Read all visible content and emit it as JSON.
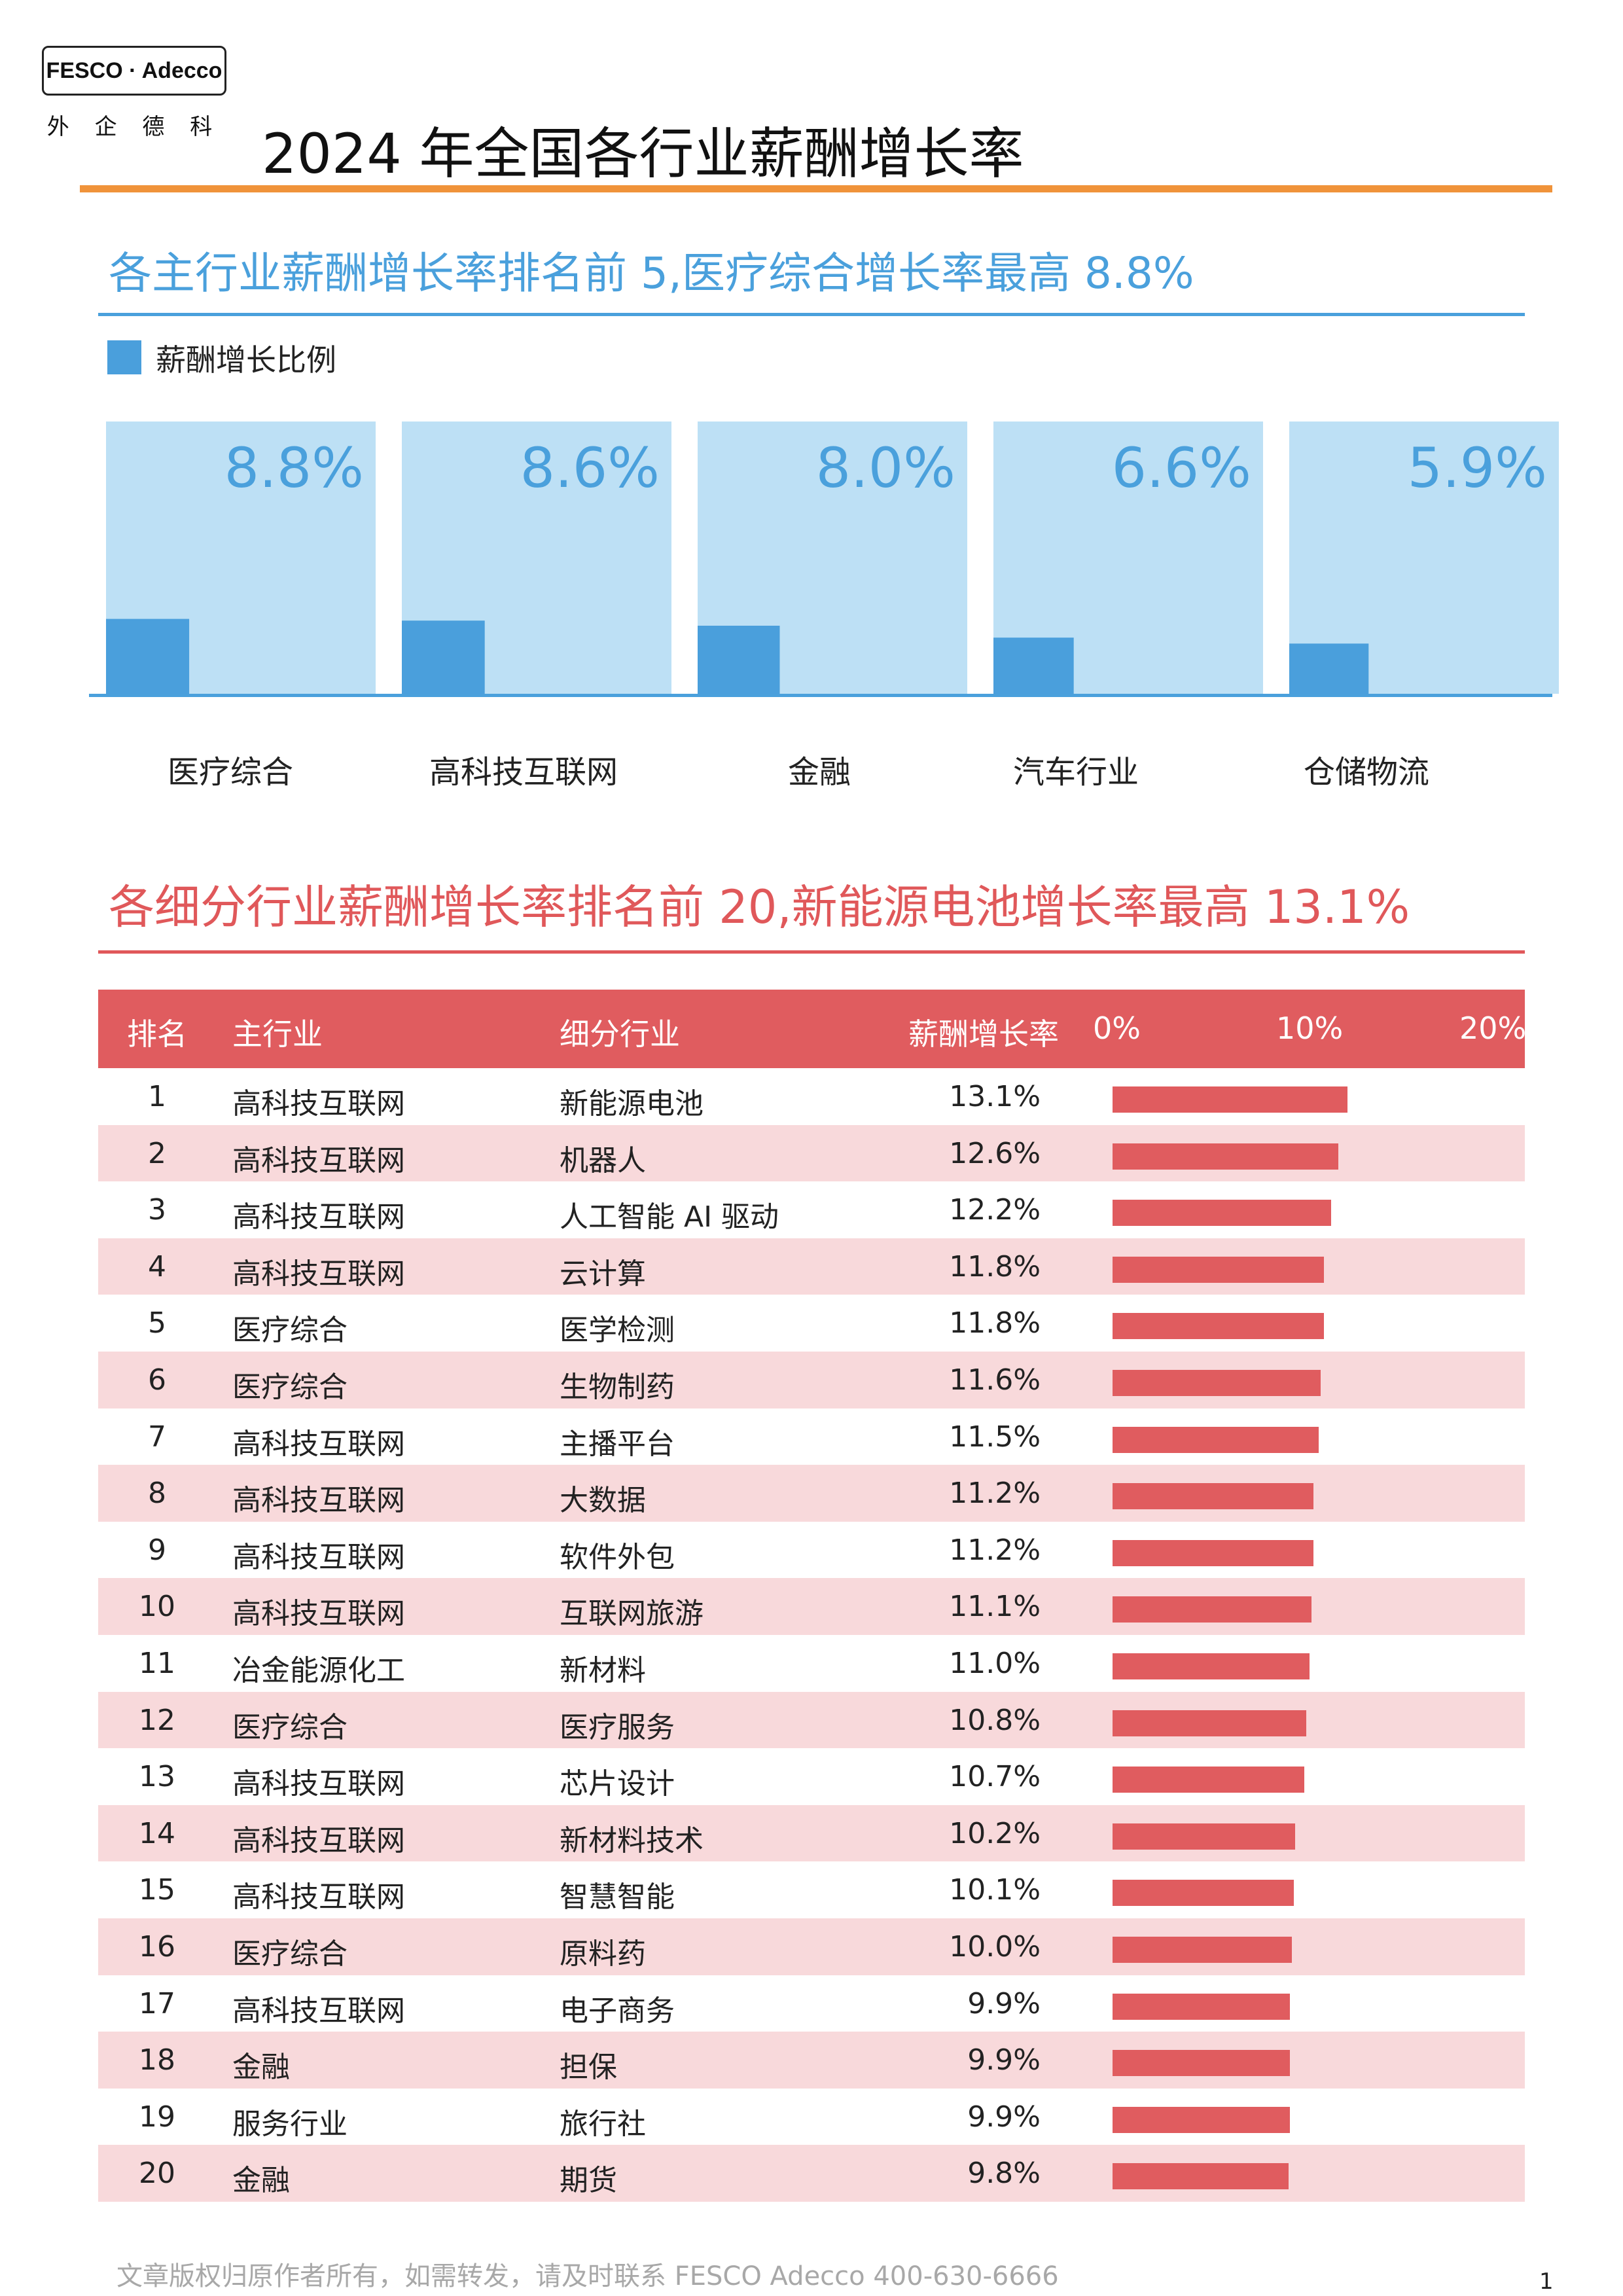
{
  "logo": {
    "brand": "FESCO · Adecco",
    "cn_name": "外 企 德 科"
  },
  "page": {
    "title": "2024  年全国各行业薪酬增长率",
    "footer": "文章版权归原作者所有，如需转发，请及时联系 FESCO Adecco 400-630-6666",
    "page_number": "1"
  },
  "colors": {
    "accent_orange": "#f0933a",
    "blue": "#4aa0dc",
    "light_blue": "#bde0f5",
    "red": "#e05c5f",
    "pink_row": "#f8d9db"
  },
  "section1": {
    "heading": "各主行业薪酬增长率排名前  5,医疗综合增长率最高  8.8%",
    "legend": "薪酬增长比例"
  },
  "section2": {
    "heading": "各细分行业薪酬增长率排名前  20,新能源电池增长率最高  13.1%",
    "columns": {
      "rank": "排名",
      "main": "主行业",
      "sub": "细分行业",
      "rate": "薪酬增长率"
    },
    "axis_ticks": [
      "0%",
      "10%",
      "20%"
    ]
  },
  "chart_data": [
    {
      "type": "bar",
      "title": "各主行业薪酬增长率排名前  5,医疗综合增长率最高  8.8%",
      "series": [
        {
          "name": "薪酬增长比例",
          "values": [
            8.8,
            8.6,
            8.0,
            6.6,
            5.9
          ]
        }
      ],
      "categories": [
        "医疗综合",
        "高科技互联网",
        "金融",
        "汽车行业",
        "仓储物流"
      ],
      "value_labels": [
        "8.8%",
        "8.6%",
        "8.0%",
        "6.6%",
        "5.9%"
      ],
      "unit": "%",
      "legend": "top-left"
    },
    {
      "type": "table",
      "title": "各细分行业薪酬增长率排名前  20,新能源电池增长率最高  13.1%",
      "xlim": [
        0,
        20
      ],
      "rows": [
        {
          "rank": "1",
          "main": "高科技互联网",
          "sub": "新能源电池",
          "rate_label": "13.1%",
          "rate": 13.1
        },
        {
          "rank": "2",
          "main": "高科技互联网",
          "sub": "机器人",
          "rate_label": "12.6%",
          "rate": 12.6
        },
        {
          "rank": "3",
          "main": "高科技互联网",
          "sub": "人工智能  AI  驱动",
          "rate_label": "12.2%",
          "rate": 12.2
        },
        {
          "rank": "4",
          "main": "高科技互联网",
          "sub": "云计算",
          "rate_label": "11.8%",
          "rate": 11.8
        },
        {
          "rank": "5",
          "main": "医疗综合",
          "sub": "医学检测",
          "rate_label": "11.8%",
          "rate": 11.8
        },
        {
          "rank": "6",
          "main": "医疗综合",
          "sub": "生物制药",
          "rate_label": "11.6%",
          "rate": 11.6
        },
        {
          "rank": "7",
          "main": "高科技互联网",
          "sub": "主播平台",
          "rate_label": "11.5%",
          "rate": 11.5
        },
        {
          "rank": "8",
          "main": "高科技互联网",
          "sub": "大数据",
          "rate_label": "11.2%",
          "rate": 11.2
        },
        {
          "rank": "9",
          "main": "高科技互联网",
          "sub": "软件外包",
          "rate_label": "11.2%",
          "rate": 11.2
        },
        {
          "rank": "10",
          "main": "高科技互联网",
          "sub": "互联网旅游",
          "rate_label": "11.1%",
          "rate": 11.1
        },
        {
          "rank": "11",
          "main": "冶金能源化工",
          "sub": "新材料",
          "rate_label": "11.0%",
          "rate": 11.0
        },
        {
          "rank": "12",
          "main": "医疗综合",
          "sub": "医疗服务",
          "rate_label": "10.8%",
          "rate": 10.8
        },
        {
          "rank": "13",
          "main": "高科技互联网",
          "sub": "芯片设计",
          "rate_label": "10.7%",
          "rate": 10.7
        },
        {
          "rank": "14",
          "main": "高科技互联网",
          "sub": "新材料技术",
          "rate_label": "10.2%",
          "rate": 10.2
        },
        {
          "rank": "15",
          "main": "高科技互联网",
          "sub": "智慧智能",
          "rate_label": "10.1%",
          "rate": 10.1
        },
        {
          "rank": "16",
          "main": "医疗综合",
          "sub": "原料药",
          "rate_label": "10.0%",
          "rate": 10.0
        },
        {
          "rank": "17",
          "main": "高科技互联网",
          "sub": "电子商务",
          "rate_label": "9.9%",
          "rate": 9.9
        },
        {
          "rank": "18",
          "main": "金融",
          "sub": "担保",
          "rate_label": "9.9%",
          "rate": 9.9
        },
        {
          "rank": "19",
          "main": "服务行业",
          "sub": "旅行社",
          "rate_label": "9.9%",
          "rate": 9.9
        },
        {
          "rank": "20",
          "main": "金融",
          "sub": "期货",
          "rate_label": "9.8%",
          "rate": 9.8
        }
      ]
    }
  ]
}
